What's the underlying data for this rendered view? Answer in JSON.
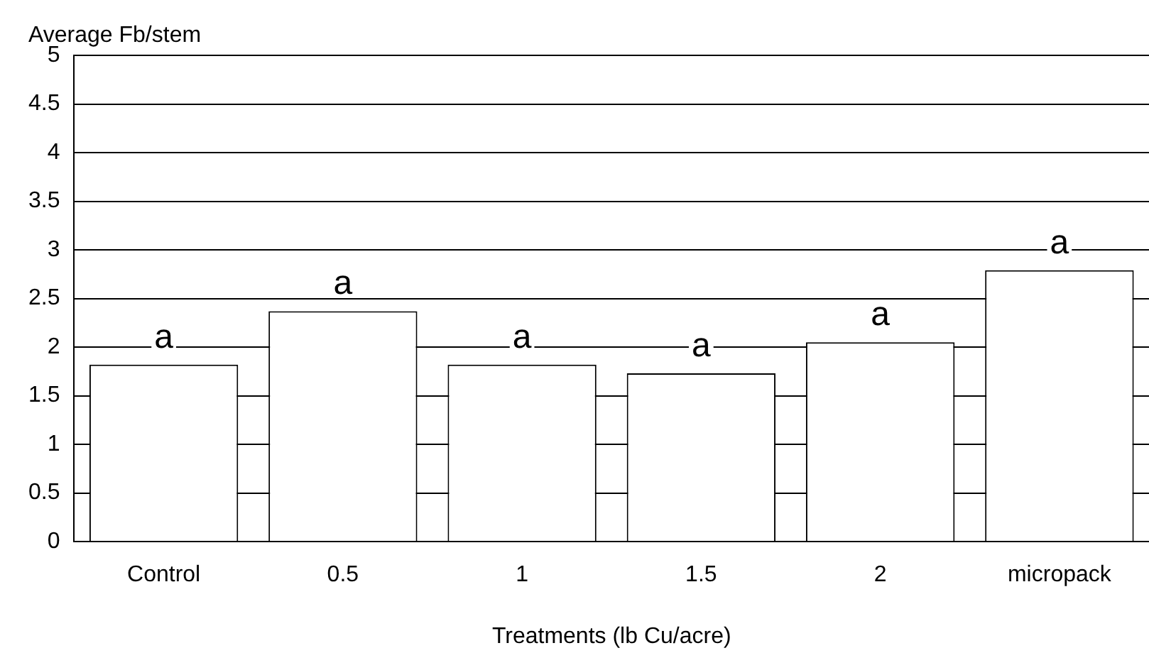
{
  "chart_data": {
    "type": "bar",
    "xlabel": "Treatments (lb Cu/acre)",
    "ylabel": "Average Fb/stem",
    "categories": [
      "Control",
      "0.5",
      "1",
      "1.5",
      "2",
      "micropack"
    ],
    "values": [
      1.82,
      2.37,
      1.82,
      1.73,
      2.05,
      2.79
    ],
    "color": "#ffffff",
    "ylim": [
      0,
      5
    ],
    "yticks": [
      0,
      0.5,
      1,
      1.5,
      2,
      2.5,
      3,
      3.5,
      4,
      4.5,
      5
    ],
    "grid": "y",
    "annotations": [
      {
        "text": "a",
        "x": "Control",
        "y": 1.82
      },
      {
        "text": "a",
        "x": "0.5",
        "y": 2.37
      },
      {
        "text": "a",
        "x": "1",
        "y": 1.82
      },
      {
        "text": "a",
        "x": "1.5",
        "y": 1.73
      },
      {
        "text": "a",
        "x": "2",
        "y": 2.05
      },
      {
        "text": "a",
        "x": "micropack",
        "y": 2.79
      }
    ]
  }
}
